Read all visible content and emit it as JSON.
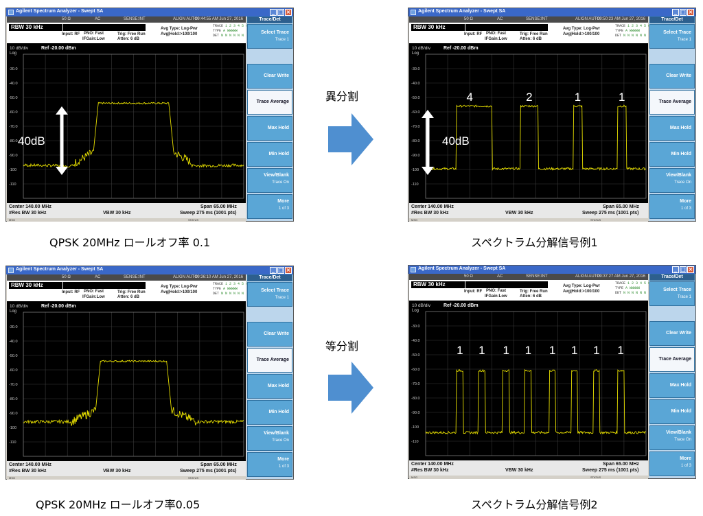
{
  "window": {
    "title": "Agilent Spectrum Analyzer - Swept SA",
    "controls": [
      "_",
      "□",
      "×"
    ]
  },
  "status_bar": {
    "items": [
      "50 Ω",
      "AC",
      "SENSE:INT",
      "ALIGN AUTO"
    ]
  },
  "analyzer": {
    "rbw_badge": "RBW  30 kHz",
    "input": "Input: RF",
    "pno": "PNO: Fast",
    "ifgain": "IFGain:Low",
    "trig": "Trig: Free Run",
    "atten": "Atten: 6 dB",
    "avg_type": "Avg Type: Log-Pwr",
    "avg_hold": "Avg|Hold:>100/100",
    "trace_labels": [
      "TRACE",
      "TYPE",
      "DET"
    ],
    "trace_values": [
      "1 2 3 4 5 6",
      "A WWWWW",
      "N N N N N N"
    ],
    "scale": "10 dB/div",
    "ref": "Ref -20.00 dBm",
    "log": "Log",
    "y_ticks": [
      "-30.0",
      "-40.0",
      "-50.0",
      "-60.0",
      "-70.0",
      "-80.0",
      "-90.0",
      "-100",
      "-110"
    ],
    "center": "Center 140.00 MHz",
    "res_bw": "#Res BW 30 kHz",
    "vbw": "VBW 30 kHz",
    "span": "Span 65.00 MHz",
    "sweep": "Sweep  275 ms (1001 pts)",
    "msg": "MSG",
    "status": "STATUS",
    "softkeys": {
      "header": "Trace/Det",
      "select_trace": "Select Trace",
      "select_trace_sub": "Trace 1",
      "clear_write": "Clear Write",
      "trace_average": "Trace Average",
      "max_hold": "Max Hold",
      "min_hold": "Min Hold",
      "view_blank": "View/Blank",
      "view_blank_sub": "Trace On",
      "more": "More",
      "more_sub": "1 of 3"
    }
  },
  "panels": [
    {
      "timestamp": "09:44:55 AM Jun 27, 2016",
      "caption": "QPSK 20MHz ロールオフ率 0.1",
      "annotation": "40dB",
      "segment_labels": []
    },
    {
      "timestamp": "09:50:23 AM Jun 27, 2016",
      "caption": "スペクトラム分解信号例1",
      "annotation": "40dB",
      "segment_labels": [
        "4",
        "2",
        "1",
        "1"
      ]
    },
    {
      "timestamp": "09:36:10 AM Jun 27, 2016",
      "caption": "QPSK 20MHz ロールオフ率0.05",
      "annotation": "",
      "segment_labels": []
    },
    {
      "timestamp": "09:37:27 AM Jun 27, 2016",
      "caption": "スペクトラム分解信号例2",
      "annotation": "",
      "segment_labels": [
        "1",
        "1",
        "1",
        "1",
        "1",
        "1",
        "1",
        "1"
      ]
    }
  ],
  "transitions": {
    "top_label": "異分割",
    "bottom_label": "等分割"
  },
  "colors": {
    "trace": "#e8e000",
    "scope_bg": "#000000",
    "softkey": "#5aa6d6",
    "arrow": "#4f8fd0"
  }
}
